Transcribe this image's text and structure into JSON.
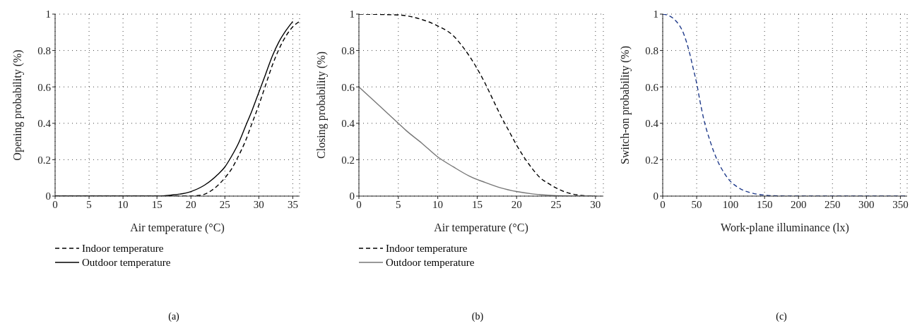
{
  "chart_data": [
    {
      "type": "line",
      "xlabel": "Air temperature (°C)",
      "ylabel": "Opening probability (%)",
      "xlim": [
        0,
        36
      ],
      "xticks": [
        0,
        5,
        10,
        15,
        20,
        25,
        30,
        35
      ],
      "ylim": [
        0,
        1
      ],
      "yticks": [
        0,
        0.2,
        0.4,
        0.6,
        0.8,
        1
      ],
      "grid": true,
      "legend": "bottom",
      "annotations": [
        "(a)"
      ],
      "series": [
        {
          "name": "Indoor temperature",
          "color": "#000000",
          "line_style": "dashed",
          "x": [
            0,
            5,
            10,
            15,
            20,
            21,
            22,
            23,
            24,
            25,
            26,
            27,
            28,
            29,
            30,
            31,
            32,
            33,
            34,
            35,
            36
          ],
          "values": [
            0,
            0,
            0,
            0,
            0,
            0.003,
            0.01,
            0.03,
            0.06,
            0.1,
            0.15,
            0.22,
            0.3,
            0.4,
            0.5,
            0.61,
            0.72,
            0.81,
            0.88,
            0.93,
            0.96
          ]
        },
        {
          "name": "Outdoor temperature",
          "color": "#000000",
          "line_style": "solid",
          "x": [
            0,
            5,
            10,
            15,
            17,
            20,
            22,
            24,
            25,
            26,
            27,
            28,
            29,
            30,
            31,
            32,
            33,
            34,
            35
          ],
          "values": [
            0,
            0,
            0,
            0,
            0.005,
            0.025,
            0.06,
            0.12,
            0.16,
            0.22,
            0.29,
            0.38,
            0.47,
            0.57,
            0.67,
            0.77,
            0.85,
            0.91,
            0.96
          ]
        }
      ]
    },
    {
      "type": "line",
      "xlabel": "Air temperature (°C)",
      "ylabel": "Closing probability (%)",
      "xlim": [
        0,
        31
      ],
      "xticks": [
        0,
        5,
        10,
        15,
        20,
        25,
        30
      ],
      "ylim": [
        0,
        1
      ],
      "yticks": [
        0,
        0.2,
        0.4,
        0.6,
        0.8,
        1
      ],
      "grid": true,
      "legend": "bottom",
      "annotations": [
        "(b)"
      ],
      "series": [
        {
          "name": "Indoor temperature",
          "color": "#000000",
          "line_style": "dashed",
          "x": [
            0,
            5,
            8,
            10,
            12,
            13,
            14,
            15,
            16,
            17,
            18,
            19,
            20,
            21,
            22,
            23,
            24,
            25,
            26,
            27,
            28,
            29,
            30
          ],
          "values": [
            1,
            0.995,
            0.97,
            0.935,
            0.88,
            0.83,
            0.77,
            0.7,
            0.62,
            0.53,
            0.44,
            0.36,
            0.28,
            0.21,
            0.15,
            0.1,
            0.07,
            0.045,
            0.025,
            0.012,
            0.005,
            0.001,
            0
          ]
        },
        {
          "name": "Outdoor temperature",
          "color": "#777777",
          "line_style": "solid",
          "x": [
            0,
            2,
            4,
            5,
            6,
            8,
            10,
            12,
            14,
            16,
            18,
            20,
            22,
            24,
            26,
            28,
            30
          ],
          "values": [
            0.6,
            0.52,
            0.44,
            0.4,
            0.36,
            0.29,
            0.215,
            0.16,
            0.11,
            0.075,
            0.045,
            0.025,
            0.012,
            0.005,
            0.001,
            0,
            0
          ]
        }
      ]
    },
    {
      "type": "line",
      "xlabel": "Work-plane illuminance (lx)",
      "ylabel": "Switch-on probability (%)",
      "xlim": [
        0,
        360
      ],
      "xticks": [
        0,
        50,
        100,
        150,
        200,
        250,
        300,
        350
      ],
      "ylim": [
        0,
        1
      ],
      "yticks": [
        0,
        0.2,
        0.4,
        0.6,
        0.8,
        1
      ],
      "grid": true,
      "annotations": [
        "(c)"
      ],
      "series": [
        {
          "color": "#1f3a8a",
          "line_style": "dashed",
          "x": [
            0,
            10,
            20,
            30,
            40,
            45,
            50,
            55,
            60,
            70,
            80,
            90,
            100,
            110,
            120,
            130,
            140,
            150,
            170,
            200,
            250,
            300,
            360
          ],
          "values": [
            1,
            0.99,
            0.96,
            0.9,
            0.78,
            0.7,
            0.62,
            0.52,
            0.43,
            0.3,
            0.2,
            0.13,
            0.08,
            0.05,
            0.03,
            0.018,
            0.01,
            0.005,
            0.001,
            0,
            0,
            0,
            0
          ]
        }
      ]
    }
  ]
}
